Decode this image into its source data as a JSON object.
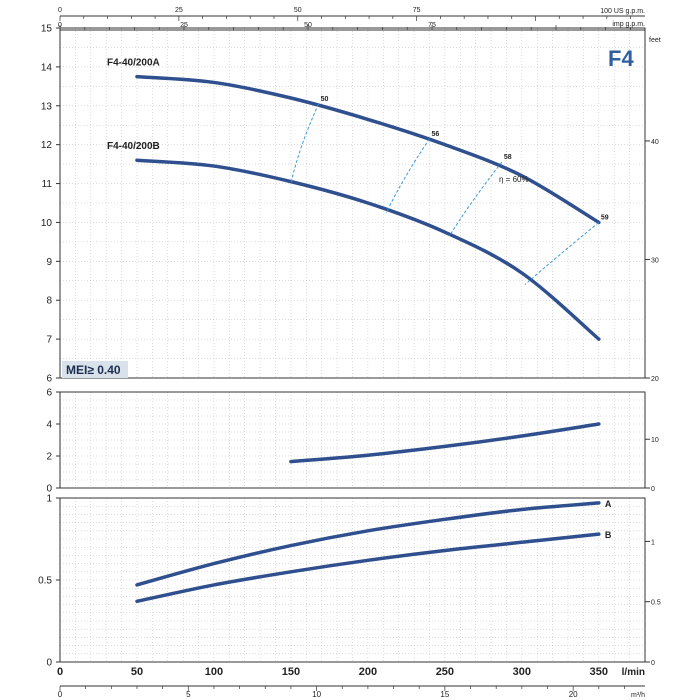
{
  "chart_data": [
    {
      "type": "line",
      "panel": "head",
      "title": "F4",
      "ylim": [
        6,
        15
      ],
      "yticks": [
        6,
        7,
        8,
        9,
        10,
        11,
        12,
        13,
        14,
        15
      ],
      "right_axis_label": "feet",
      "right_ticks": [
        20,
        30,
        40
      ],
      "annotation": "MEI≥ 0.40",
      "efficiency_label": "η = 60%",
      "series": [
        {
          "name": "F4-40/200A",
          "x": [
            50,
            100,
            150,
            200,
            250,
            300,
            350
          ],
          "y": [
            13.75,
            13.6,
            13.2,
            12.65,
            12.0,
            11.2,
            10.0
          ]
        },
        {
          "name": "F4-40/200B",
          "x": [
            50,
            100,
            150,
            200,
            250,
            300,
            350
          ],
          "y": [
            11.6,
            11.45,
            11.05,
            10.5,
            9.75,
            8.7,
            7.0
          ]
        }
      ],
      "efficiency_lines": [
        {
          "label": "50",
          "points": [
            [
              168,
              13.05
            ],
            [
              150,
              11.0
            ]
          ]
        },
        {
          "label": "56",
          "points": [
            [
              240,
              12.15
            ],
            [
              212,
              10.25
            ]
          ]
        },
        {
          "label": "58",
          "points": [
            [
              287,
              11.55
            ],
            [
              253,
              9.65
            ]
          ]
        },
        {
          "label": "59",
          "points": [
            [
              350,
              10.0
            ],
            [
              302,
              8.4
            ]
          ]
        }
      ]
    },
    {
      "type": "line",
      "panel": "npsh",
      "ylim": [
        0,
        6
      ],
      "yticks": [
        0,
        2,
        4,
        6
      ],
      "right_ticks": [
        0,
        10
      ],
      "series": [
        {
          "x": [
            150,
            200,
            250,
            300,
            350
          ],
          "y": [
            1.65,
            2.05,
            2.6,
            3.25,
            4.0
          ]
        }
      ]
    },
    {
      "type": "line",
      "panel": "power",
      "ylim": [
        0,
        1
      ],
      "yticks": [
        0,
        0.5,
        1
      ],
      "right_ticks": [
        0,
        0.5,
        1
      ],
      "series": [
        {
          "name": "A",
          "x": [
            50,
            100,
            150,
            200,
            250,
            300,
            350
          ],
          "y": [
            0.47,
            0.6,
            0.71,
            0.8,
            0.87,
            0.93,
            0.97
          ]
        },
        {
          "name": "B",
          "x": [
            50,
            100,
            150,
            200,
            250,
            300,
            350
          ],
          "y": [
            0.37,
            0.47,
            0.55,
            0.62,
            0.68,
            0.73,
            0.78
          ]
        }
      ]
    }
  ],
  "axes": {
    "lmin": {
      "unit": "l/min",
      "ticks": [
        0,
        50,
        100,
        150,
        200,
        250,
        300,
        350
      ]
    },
    "m3h": {
      "unit": "m³/h",
      "ticks": [
        0,
        5,
        10,
        15,
        20
      ]
    },
    "us_gpm": {
      "unit": "100 US g.p.m.",
      "ticks": [
        0,
        25,
        50,
        75
      ]
    },
    "imp_gpm": {
      "unit": "imp g.p.m.",
      "ticks": [
        0,
        25,
        50,
        75
      ]
    }
  },
  "colors": {
    "curve": "#2f4f8f",
    "efficiency": "#3a9ad9",
    "grid": "#bbbbbb",
    "axis": "#333333"
  }
}
